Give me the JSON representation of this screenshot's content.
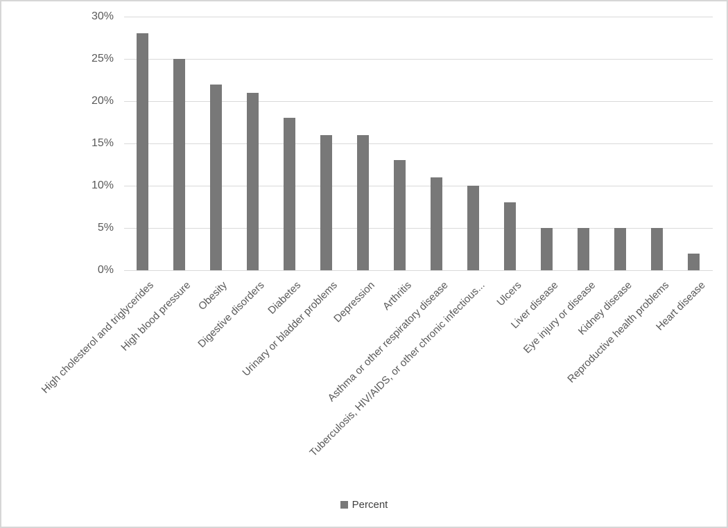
{
  "chart_data": {
    "type": "bar",
    "title": "",
    "xlabel": "",
    "ylabel": "",
    "categories": [
      "High cholesterol and triglycerides",
      "High blood pressure",
      "Obesity",
      "Digestive disorders",
      "Diabetes",
      "Urinary or bladder problems",
      "Depression",
      "Arthritis",
      "Asthma or other respiratory disease",
      "Tuberculosis, HIV/AIDS, or other chronic infectious...",
      "Ulcers",
      "Liver disease",
      "Eye injury or disease",
      "Kidney disease",
      "Reproductive health problems",
      "Heart disease"
    ],
    "series": [
      {
        "name": "Percent",
        "values": [
          28,
          25,
          22,
          21,
          18,
          16,
          16,
          13,
          11,
          10,
          8,
          5,
          5,
          5,
          5,
          2
        ]
      }
    ],
    "ylim": [
      0,
      30
    ],
    "y_tick_step": 5,
    "y_tick_labels": [
      "30%",
      "25%",
      "20%",
      "15%",
      "10%",
      "5%",
      "0%"
    ],
    "grid": true,
    "legend": {
      "position": "bottom",
      "label": "Percent"
    },
    "colors": {
      "bar": "#787878",
      "gridline": "#d9d9d9",
      "axis_text": "#595959",
      "frame_border": "#d6d6d6"
    }
  }
}
